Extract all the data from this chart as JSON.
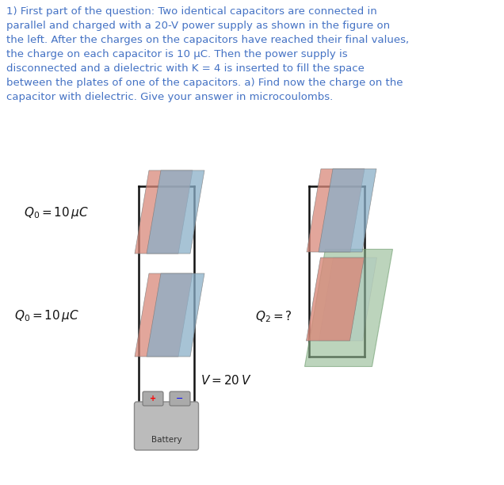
{
  "title_text": "1) First part of the question: Two identical capacitors are connected in\nparallel and charged with a 20-V power supply as shown in the figure on\nthe left. After the charges on the capacitors have reached their final values,\nthe charge on each capacitor is 10 μC. Then the power supply is\ndisconnected and a dielectric with K = 4 is inserted to fill the space\nbetween the plates of one of the capacitors. a) Find now the charge on the\ncapacitor with dielectric. Give your answer in microcoulombs.",
  "title_color": "#4472C4",
  "title_fontsize": 9.5,
  "bg_color": "#ffffff",
  "label_q0_top": "$Q_0 = 10\\,\\mu C$",
  "label_q0_bot": "$\\mathit{Q}_0 = 10\\,\\mu C$",
  "label_v": "$V = 20\\,V$",
  "label_battery": "Battery",
  "label_q2": "$Q_2 =?$",
  "plate_red": "#D9897A",
  "plate_blue": "#8AAFC8",
  "plate_green": "#90B890",
  "wire_color": "#111111",
  "text_color": "#111111"
}
